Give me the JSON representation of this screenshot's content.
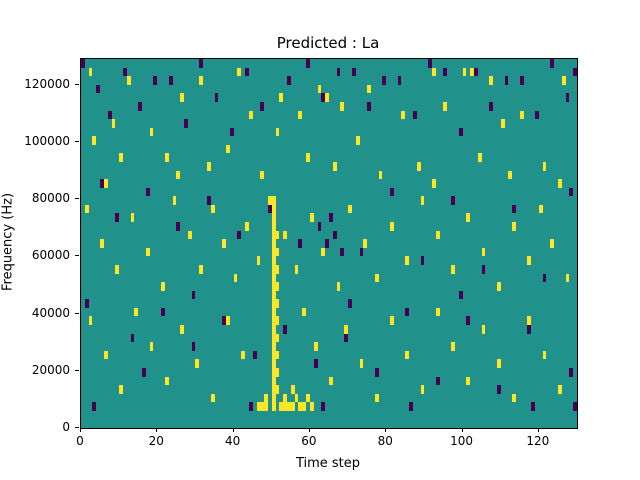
{
  "chart_data": {
    "type": "heatmap",
    "title": "Predicted : La",
    "xlabel": "Time step",
    "ylabel": "Frequency (Hz)",
    "xlim": [
      0,
      130
    ],
    "ylim": [
      0,
      129000
    ],
    "xticks": [
      0,
      20,
      40,
      60,
      80,
      100,
      120
    ],
    "yticks": [
      0,
      20000,
      40000,
      60000,
      80000,
      100000,
      120000
    ],
    "n_time_steps": 130,
    "n_freq_bins": 43,
    "freq_bin_hz": 3000,
    "grid": false,
    "legend": "none",
    "colors": {
      "background": "#21918c",
      "high": "#fde725",
      "low": "#440154",
      "frame": "#000000"
    },
    "cells": {
      "yellow": [
        [
          2,
          41
        ],
        [
          12,
          40
        ],
        [
          26,
          38
        ],
        [
          41,
          41
        ],
        [
          44,
          36
        ],
        [
          52,
          38
        ],
        [
          57,
          36
        ],
        [
          62,
          39
        ],
        [
          64,
          38
        ],
        [
          68,
          37
        ],
        [
          75,
          39
        ],
        [
          84,
          36
        ],
        [
          95,
          37
        ],
        [
          100,
          41
        ],
        [
          102,
          41
        ],
        [
          107,
          40
        ],
        [
          115,
          36
        ],
        [
          126,
          40
        ],
        [
          31,
          40
        ],
        [
          92,
          41
        ],
        [
          3,
          33
        ],
        [
          8,
          35
        ],
        [
          10,
          31
        ],
        [
          18,
          34
        ],
        [
          22,
          31
        ],
        [
          25,
          29
        ],
        [
          33,
          30
        ],
        [
          38,
          32
        ],
        [
          47,
          29
        ],
        [
          51,
          34
        ],
        [
          59,
          31
        ],
        [
          66,
          30
        ],
        [
          72,
          33
        ],
        [
          78,
          29
        ],
        [
          88,
          30
        ],
        [
          92,
          28
        ],
        [
          104,
          31
        ],
        [
          112,
          29
        ],
        [
          121,
          30
        ],
        [
          125,
          28
        ],
        [
          6,
          28
        ],
        [
          110,
          35
        ],
        [
          1,
          25
        ],
        [
          5,
          21
        ],
        [
          9,
          18
        ],
        [
          13,
          24
        ],
        [
          17,
          20
        ],
        [
          21,
          16
        ],
        [
          24,
          26
        ],
        [
          28,
          22
        ],
        [
          31,
          18
        ],
        [
          34,
          25
        ],
        [
          37,
          21
        ],
        [
          40,
          17
        ],
        [
          43,
          23
        ],
        [
          46,
          19
        ],
        [
          49,
          26
        ],
        [
          53,
          22
        ],
        [
          56,
          18
        ],
        [
          60,
          24
        ],
        [
          63,
          20
        ],
        [
          67,
          16
        ],
        [
          70,
          25
        ],
        [
          74,
          21
        ],
        [
          77,
          17
        ],
        [
          81,
          23
        ],
        [
          85,
          19
        ],
        [
          89,
          26
        ],
        [
          93,
          22
        ],
        [
          97,
          18
        ],
        [
          101,
          24
        ],
        [
          105,
          20
        ],
        [
          109,
          16
        ],
        [
          113,
          23
        ],
        [
          117,
          19
        ],
        [
          120,
          25
        ],
        [
          123,
          21
        ],
        [
          127,
          17
        ],
        [
          2,
          12
        ],
        [
          6,
          8
        ],
        [
          10,
          4
        ],
        [
          14,
          13
        ],
        [
          18,
          9
        ],
        [
          22,
          5
        ],
        [
          26,
          11
        ],
        [
          30,
          7
        ],
        [
          34,
          3
        ],
        [
          38,
          12
        ],
        [
          42,
          8
        ],
        [
          55,
          4
        ],
        [
          58,
          13
        ],
        [
          61,
          9
        ],
        [
          65,
          5
        ],
        [
          69,
          11
        ],
        [
          73,
          7
        ],
        [
          77,
          3
        ],
        [
          81,
          12
        ],
        [
          85,
          8
        ],
        [
          89,
          4
        ],
        [
          93,
          13
        ],
        [
          97,
          9
        ],
        [
          101,
          5
        ],
        [
          105,
          11
        ],
        [
          109,
          7
        ],
        [
          113,
          3
        ],
        [
          117,
          12
        ],
        [
          121,
          8
        ],
        [
          125,
          4
        ],
        [
          50,
          2
        ],
        [
          50,
          3
        ],
        [
          50,
          4
        ],
        [
          50,
          5
        ],
        [
          50,
          6
        ],
        [
          50,
          7
        ],
        [
          50,
          8
        ],
        [
          50,
          9
        ],
        [
          50,
          10
        ],
        [
          50,
          11
        ],
        [
          50,
          12
        ],
        [
          50,
          13
        ],
        [
          50,
          14
        ],
        [
          50,
          15
        ],
        [
          50,
          16
        ],
        [
          50,
          17
        ],
        [
          50,
          18
        ],
        [
          50,
          19
        ],
        [
          50,
          20
        ],
        [
          50,
          21
        ],
        [
          50,
          22
        ],
        [
          50,
          23
        ],
        [
          50,
          24
        ],
        [
          50,
          25
        ],
        [
          50,
          26
        ],
        [
          51,
          4
        ],
        [
          51,
          6
        ],
        [
          51,
          8
        ],
        [
          51,
          10
        ],
        [
          51,
          12
        ],
        [
          51,
          14
        ],
        [
          51,
          16
        ],
        [
          51,
          18
        ],
        [
          51,
          20
        ],
        [
          51,
          22
        ],
        [
          46,
          2
        ],
        [
          47,
          2
        ],
        [
          48,
          2
        ],
        [
          48,
          3
        ],
        [
          52,
          2
        ],
        [
          53,
          2
        ],
        [
          53,
          3
        ],
        [
          54,
          2
        ],
        [
          55,
          2
        ],
        [
          56,
          3
        ],
        [
          57,
          2
        ],
        [
          58,
          2
        ],
        [
          59,
          3
        ],
        [
          60,
          2
        ]
      ],
      "purple": [
        [
          0,
          42
        ],
        [
          4,
          39
        ],
        [
          7,
          36
        ],
        [
          11,
          41
        ],
        [
          15,
          37
        ],
        [
          19,
          40
        ],
        [
          23,
          40
        ],
        [
          27,
          35
        ],
        [
          31,
          42
        ],
        [
          35,
          38
        ],
        [
          39,
          34
        ],
        [
          43,
          41
        ],
        [
          47,
          37
        ],
        [
          54,
          40
        ],
        [
          59,
          42
        ],
        [
          63,
          38
        ],
        [
          67,
          41
        ],
        [
          71,
          41
        ],
        [
          75,
          37
        ],
        [
          79,
          40
        ],
        [
          83,
          40
        ],
        [
          87,
          36
        ],
        [
          91,
          42
        ],
        [
          95,
          41
        ],
        [
          99,
          34
        ],
        [
          103,
          41
        ],
        [
          107,
          37
        ],
        [
          111,
          40
        ],
        [
          115,
          40
        ],
        [
          119,
          36
        ],
        [
          123,
          42
        ],
        [
          127,
          38
        ],
        [
          129,
          41
        ],
        [
          1,
          14
        ],
        [
          5,
          28
        ],
        [
          9,
          24
        ],
        [
          13,
          10
        ],
        [
          17,
          27
        ],
        [
          21,
          13
        ],
        [
          25,
          23
        ],
        [
          29,
          9
        ],
        [
          33,
          26
        ],
        [
          37,
          12
        ],
        [
          41,
          22
        ],
        [
          45,
          8
        ],
        [
          49,
          25
        ],
        [
          53,
          11
        ],
        [
          57,
          21
        ],
        [
          61,
          7
        ],
        [
          65,
          24
        ],
        [
          69,
          10
        ],
        [
          73,
          20
        ],
        [
          77,
          6
        ],
        [
          81,
          27
        ],
        [
          85,
          13
        ],
        [
          89,
          19
        ],
        [
          93,
          5
        ],
        [
          97,
          26
        ],
        [
          101,
          12
        ],
        [
          105,
          18
        ],
        [
          109,
          4
        ],
        [
          113,
          25
        ],
        [
          117,
          11
        ],
        [
          121,
          17
        ],
        [
          128,
          27
        ],
        [
          3,
          2
        ],
        [
          16,
          6
        ],
        [
          29,
          15
        ],
        [
          44,
          2
        ],
        [
          63,
          2
        ],
        [
          70,
          14
        ],
        [
          86,
          2
        ],
        [
          99,
          15
        ],
        [
          118,
          2
        ],
        [
          128,
          6
        ],
        [
          129,
          2
        ],
        [
          64,
          21
        ],
        [
          66,
          22
        ],
        [
          68,
          20
        ],
        [
          62,
          23
        ]
      ]
    }
  }
}
